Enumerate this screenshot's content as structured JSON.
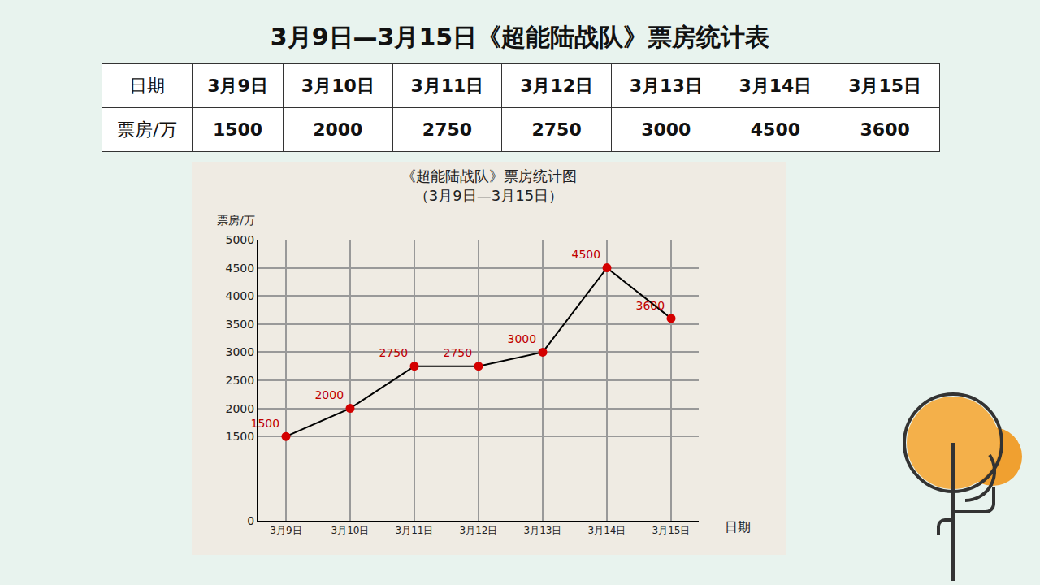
{
  "header": {
    "title": "3月9日—3月15日《超能陆战队》票房统计表"
  },
  "table": {
    "rows": [
      [
        "日期",
        "3月9日",
        "3月10日",
        "3月11日",
        "3月12日",
        "3月13日",
        "3月14日",
        "3月15日"
      ],
      [
        "票房/万",
        "1500",
        "2000",
        "2750",
        "2750",
        "3000",
        "4500",
        "3600"
      ]
    ]
  },
  "chart_data": {
    "type": "line",
    "title": "《超能陆战队》票房统计图",
    "subtitle": "（3月9日—3月15日）",
    "x_label": "日期",
    "y_label": "票房/万",
    "categories": [
      "3月9日",
      "3月10日",
      "3月11日",
      "3月12日",
      "3月13日",
      "3月14日",
      "3月15日"
    ],
    "values": [
      1500,
      2000,
      2750,
      2750,
      3000,
      4500,
      3600
    ],
    "color": "#000000",
    "marker": "circle",
    "data_labels": true,
    "grid": true,
    "ylim": [
      0,
      5000
    ],
    "yticks": [
      0,
      1500,
      2000,
      2500,
      3000,
      3500,
      4000,
      4500,
      5000
    ]
  }
}
